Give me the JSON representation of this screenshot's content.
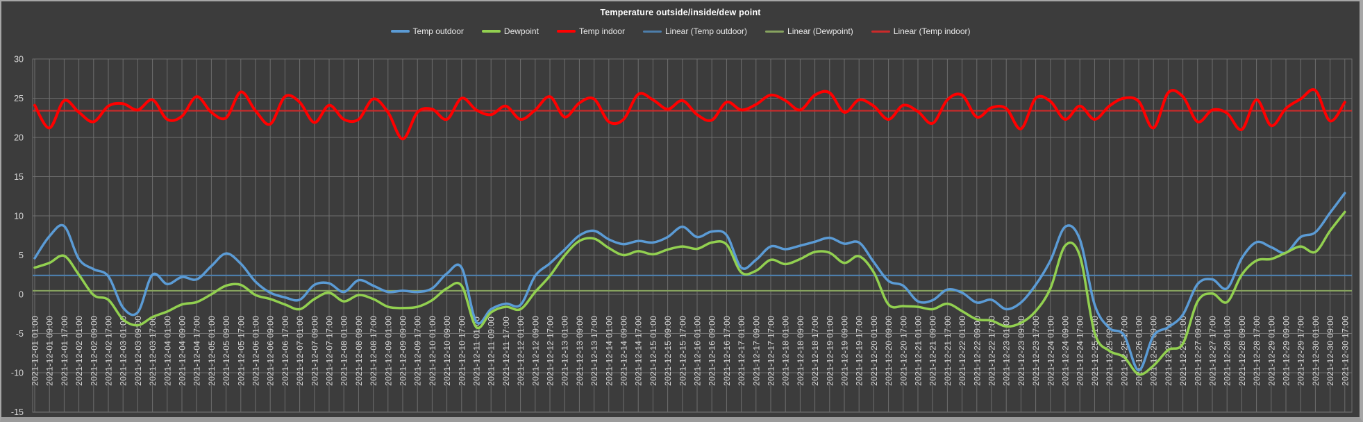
{
  "title": "Temperature outside/inside/dew point",
  "colors": {
    "background": "#3c3c3c",
    "frame_border": "#a6a6a6",
    "gridline": "#6e6e6e",
    "axis_text": "#d9d9d9",
    "title_text": "#ffffff",
    "legend_text": "#e8e8e8",
    "temp_outdoor": "#5b9bd5",
    "dewpoint": "#92d050",
    "temp_indoor": "#ff0000",
    "linear_temp_outdoor": "#4d7eab",
    "linear_dewpoint": "#87a35f",
    "linear_temp_indoor": "#cc2a2a"
  },
  "legend": [
    {
      "label": "Temp outdoor",
      "color": "#5b9bd5",
      "kind": "series"
    },
    {
      "label": "Dewpoint",
      "color": "#92d050",
      "kind": "series"
    },
    {
      "label": "Temp indoor",
      "color": "#ff0000",
      "kind": "series"
    },
    {
      "label": "Linear (Temp outdoor)",
      "color": "#4d7eab",
      "kind": "trend"
    },
    {
      "label": "Linear (Dewpoint)",
      "color": "#87a35f",
      "kind": "trend"
    },
    {
      "label": "Linear (Temp indoor)",
      "color": "#cc2a2a",
      "kind": "trend"
    }
  ],
  "chart_data": {
    "type": "line",
    "title": "Temperature outside/inside/dew point",
    "xlabel": "",
    "ylabel": "",
    "ylim": [
      -15,
      30
    ],
    "yticks": [
      30,
      25,
      20,
      15,
      10,
      5,
      0,
      -5,
      -10,
      -15
    ],
    "grid": true,
    "legend_position": "top",
    "x_labels": [
      "2021-12-01 01:00",
      "2021-12-01 09:00",
      "2021-12-01 17:00",
      "2021-12-02 01:00",
      "2021-12-02 09:00",
      "2021-12-02 17:00",
      "2021-12-03 01:00",
      "2021-12-03 09:00",
      "2021-12-03 17:00",
      "2021-12-04 01:00",
      "2021-12-04 09:00",
      "2021-12-04 17:00",
      "2021-12-05 01:00",
      "2021-12-05 09:00",
      "2021-12-05 17:00",
      "2021-12-06 01:00",
      "2021-12-06 09:00",
      "2021-12-06 17:00",
      "2021-12-07 01:00",
      "2021-12-07 09:00",
      "2021-12-07 17:00",
      "2021-12-08 01:00",
      "2021-12-08 09:00",
      "2021-12-08 17:00",
      "2021-12-09 01:00",
      "2021-12-09 09:00",
      "2021-12-09 17:00",
      "2021-12-10 01:00",
      "2021-12-10 09:00",
      "2021-12-10 17:00",
      "2021-12-11 01:00",
      "2021-12-11 09:00",
      "2021-12-11 17:00",
      "2021-12-12 01:00",
      "2021-12-12 09:00",
      "2021-12-12 17:00",
      "2021-12-13 01:00",
      "2021-12-13 09:00",
      "2021-12-13 17:00",
      "2021-12-14 01:00",
      "2021-12-14 09:00",
      "2021-12-14 17:00",
      "2021-12-15 01:00",
      "2021-12-15 09:00",
      "2021-12-15 17:00",
      "2021-12-16 01:00",
      "2021-12-16 09:00",
      "2021-12-16 17:00",
      "2021-12-17 01:00",
      "2021-12-17 09:00",
      "2021-12-17 17:00",
      "2021-12-18 01:00",
      "2021-12-18 09:00",
      "2021-12-18 17:00",
      "2021-12-19 01:00",
      "2021-12-19 09:00",
      "2021-12-19 17:00",
      "2021-12-20 01:00",
      "2021-12-20 09:00",
      "2021-12-20 17:00",
      "2021-12-21 01:00",
      "2021-12-21 09:00",
      "2021-12-21 17:00",
      "2021-12-22 01:00",
      "2021-12-22 09:00",
      "2021-12-22 17:00",
      "2021-12-23 01:00",
      "2021-12-23 09:00",
      "2021-12-23 17:00",
      "2021-12-24 01:00",
      "2021-12-24 09:00",
      "2021-12-24 17:00",
      "2021-12-25 01:00",
      "2021-12-25 09:00",
      "2021-12-25 17:00",
      "2021-12-26 01:00",
      "2021-12-26 09:00",
      "2021-12-26 17:00",
      "2021-12-27 01:00",
      "2021-12-27 09:00",
      "2021-12-27 17:00",
      "2021-12-28 01:00",
      "2021-12-28 09:00",
      "2021-12-28 17:00",
      "2021-12-29 01:00",
      "2021-12-29 09:00",
      "2021-12-29 17:00",
      "2021-12-30 01:00",
      "2021-12-30 09:00",
      "2021-12-30 17:00"
    ],
    "series": [
      {
        "name": "Temp outdoor",
        "color": "#5b9bd5",
        "values": [
          4.6,
          7.4,
          8.7,
          4.5,
          3.2,
          2.3,
          -1.7,
          -2.3,
          2.5,
          1.3,
          2.2,
          1.9,
          3.6,
          5.2,
          3.9,
          1.6,
          0.2,
          -0.4,
          -0.7,
          1.2,
          1.4,
          0.3,
          1.8,
          1.1,
          0.3,
          0.45,
          0.3,
          0.75,
          2.65,
          3.4,
          -3.5,
          -1.9,
          -1.2,
          -1.35,
          2.35,
          3.95,
          5.7,
          7.5,
          8.1,
          7.0,
          6.4,
          6.8,
          6.6,
          7.3,
          8.6,
          7.3,
          8.0,
          7.55,
          3.4,
          4.4,
          6.1,
          5.75,
          6.2,
          6.7,
          7.2,
          6.45,
          6.6,
          4.1,
          1.7,
          1.1,
          -0.9,
          -0.75,
          0.6,
          0.2,
          -1.05,
          -0.7,
          -1.9,
          -1.05,
          1.2,
          4.3,
          8.6,
          7.0,
          -1.3,
          -4.3,
          -5.2,
          -9.7,
          -5.3,
          -4.2,
          -2.6,
          1.3,
          1.9,
          0.75,
          4.6,
          6.65,
          6.0,
          5.3,
          7.3,
          7.9,
          10.4,
          12.9
        ]
      },
      {
        "name": "Dewpoint",
        "color": "#92d050",
        "values": [
          3.4,
          4.0,
          4.9,
          2.5,
          -0.1,
          -0.7,
          -3.2,
          -3.95,
          -2.9,
          -2.2,
          -1.3,
          -1.0,
          0.0,
          1.1,
          1.2,
          -0.1,
          -0.6,
          -1.3,
          -1.9,
          -0.6,
          0.2,
          -0.9,
          -0.1,
          -0.6,
          -1.6,
          -1.75,
          -1.6,
          -0.75,
          0.75,
          1.1,
          -4.2,
          -2.3,
          -1.6,
          -1.9,
          0.3,
          2.35,
          4.95,
          6.8,
          7.1,
          5.9,
          5.0,
          5.5,
          5.1,
          5.7,
          6.1,
          5.8,
          6.6,
          6.35,
          2.8,
          3.0,
          4.4,
          3.85,
          4.5,
          5.4,
          5.3,
          4.0,
          4.85,
          2.8,
          -1.3,
          -1.5,
          -1.6,
          -1.9,
          -1.2,
          -2.15,
          -3.2,
          -3.35,
          -4.1,
          -3.65,
          -2.15,
          0.75,
          6.2,
          4.9,
          -4.9,
          -7.2,
          -8.0,
          -10.2,
          -9.1,
          -7.1,
          -6.3,
          -0.9,
          0.1,
          -1.0,
          2.5,
          4.3,
          4.5,
          5.3,
          6.1,
          5.4,
          8.1,
          10.5
        ]
      },
      {
        "name": "Temp indoor",
        "color": "#ff0000",
        "values": [
          24.1,
          21.2,
          24.7,
          23.2,
          22.0,
          24.0,
          24.3,
          23.5,
          24.8,
          22.3,
          22.7,
          25.2,
          23.2,
          22.5,
          25.8,
          23.4,
          21.7,
          25.2,
          24.5,
          21.9,
          24.1,
          22.3,
          22.3,
          24.9,
          23.2,
          19.8,
          23.2,
          23.6,
          22.3,
          25.0,
          23.5,
          22.9,
          24.0,
          22.3,
          23.5,
          25.2,
          22.6,
          24.4,
          24.9,
          22.0,
          22.3,
          25.5,
          24.8,
          23.6,
          24.7,
          22.9,
          22.2,
          24.5,
          23.5,
          24.2,
          25.4,
          24.7,
          23.5,
          25.4,
          25.7,
          23.2,
          24.8,
          24.0,
          22.3,
          24.1,
          23.3,
          21.8,
          24.8,
          25.4,
          22.6,
          23.8,
          23.7,
          21.1,
          25.0,
          24.6,
          22.3,
          24.0,
          22.3,
          24.0,
          25.0,
          24.6,
          21.2,
          25.7,
          25.2,
          22.0,
          23.5,
          23.1,
          21.0,
          24.8,
          21.5,
          23.7,
          24.9,
          26.0,
          22.1,
          24.5
        ]
      }
    ],
    "trendlines": [
      {
        "name": "Linear (Temp outdoor)",
        "color": "#4d7eab",
        "start": 2.4,
        "end": 2.4
      },
      {
        "name": "Linear (Dewpoint)",
        "color": "#87a35f",
        "start": 0.45,
        "end": 0.45
      },
      {
        "name": "Linear (Temp indoor)",
        "color": "#cc2a2a",
        "start": 23.4,
        "end": 23.4
      }
    ]
  }
}
